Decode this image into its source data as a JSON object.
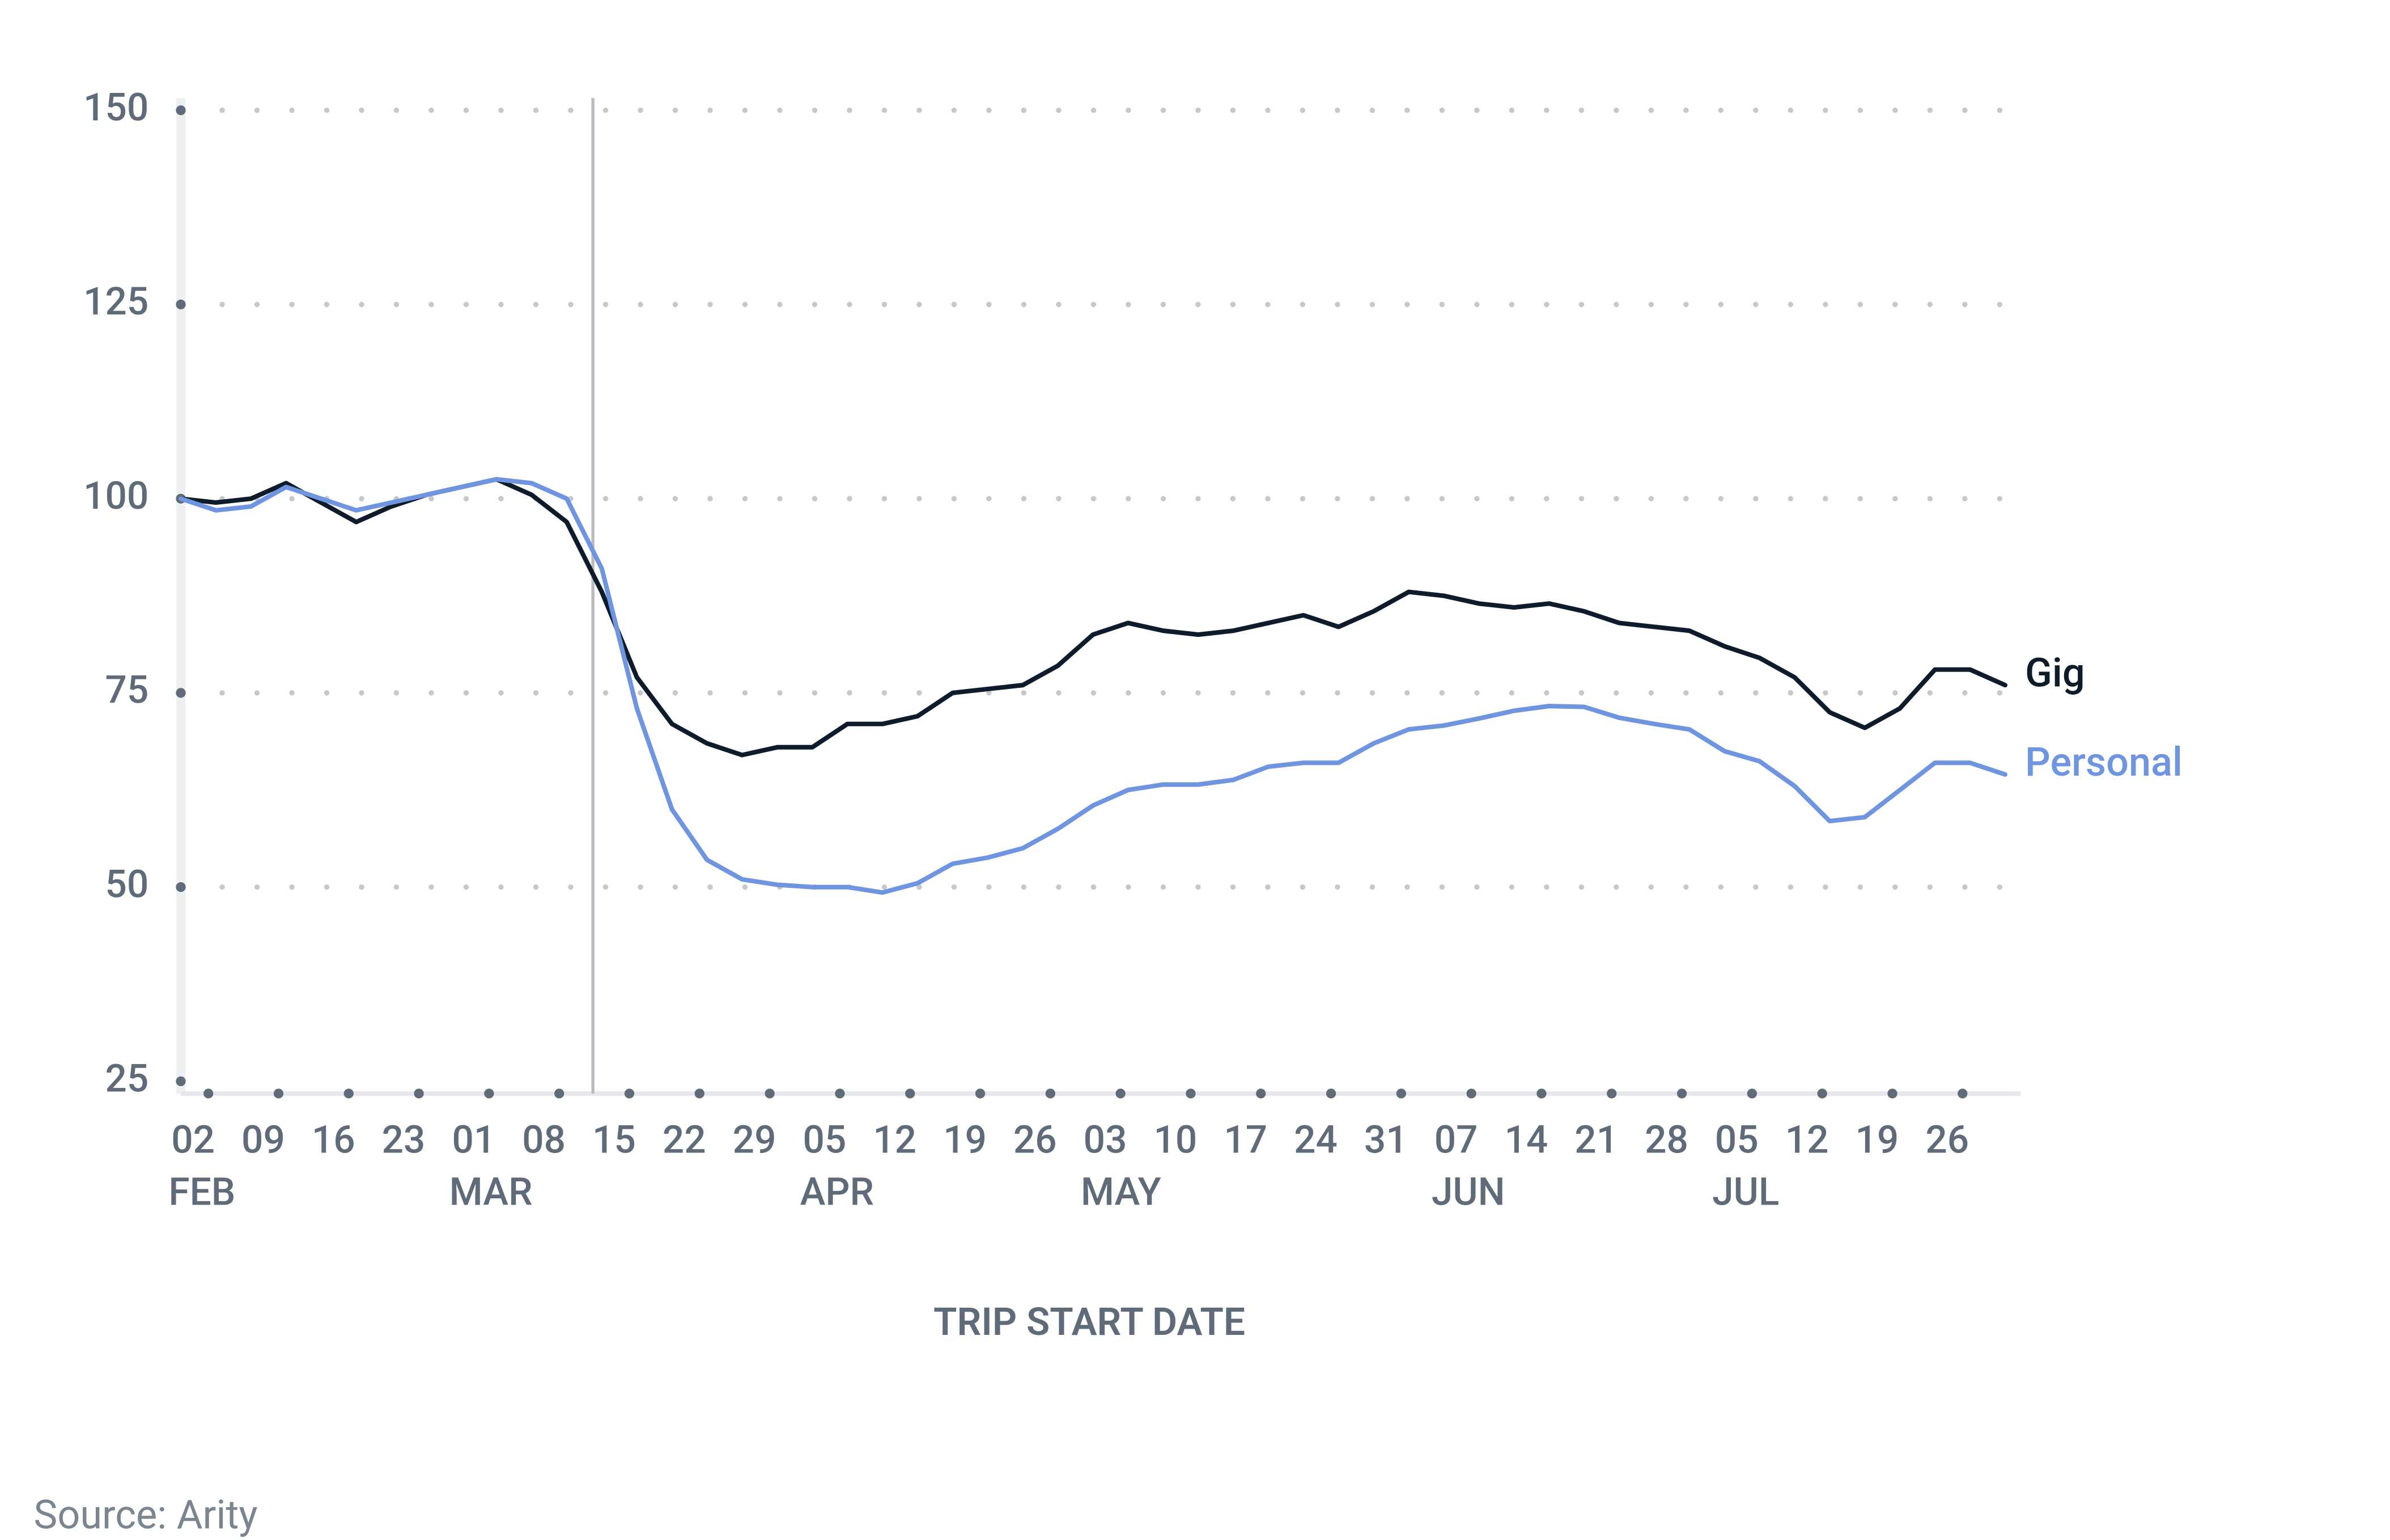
{
  "chart_data": {
    "type": "line",
    "xlabel": "TRIP START DATE",
    "source": "Source: Arity",
    "categories": [
      "02",
      null,
      "09",
      null,
      "16",
      null,
      "23",
      null,
      "01",
      null,
      "08",
      null,
      "15",
      null,
      "22",
      null,
      "29",
      null,
      "05",
      null,
      "12",
      null,
      "19",
      null,
      "26",
      null,
      "03",
      null,
      "10",
      null,
      "17",
      null,
      "24",
      null,
      "31",
      null,
      "07",
      null,
      "14",
      null,
      "21",
      null,
      "28",
      null,
      "05",
      null,
      "12",
      null,
      "19",
      null,
      "26",
      null,
      null
    ],
    "months": [
      "FEB",
      null,
      null,
      null,
      null,
      null,
      null,
      null,
      "MAR",
      null,
      null,
      null,
      null,
      null,
      null,
      null,
      null,
      null,
      "APR",
      null,
      null,
      null,
      null,
      null,
      null,
      null,
      "MAY",
      null,
      null,
      null,
      null,
      null,
      null,
      null,
      null,
      null,
      "JUN",
      null,
      null,
      null,
      null,
      null,
      null,
      null,
      "JUL",
      null,
      null,
      null,
      null,
      null,
      null,
      null,
      null
    ],
    "series": [
      {
        "name": "Gig",
        "color": "#0d1b2a",
        "values": [
          100,
          99.5,
          100,
          102,
          99.5,
          97,
          99,
          100.5,
          101.5,
          102.5,
          100.5,
          97,
          88,
          77,
          71,
          68.5,
          67,
          68,
          68,
          71,
          71,
          72,
          75,
          75.5,
          76,
          78.5,
          82.5,
          84,
          83,
          82.5,
          83,
          84,
          85,
          83.5,
          85.5,
          88,
          87.5,
          86.5,
          86,
          86.5,
          85.5,
          84,
          83.5,
          83,
          81,
          79.5,
          77,
          72.5,
          70.5,
          73,
          78,
          78,
          76
        ]
      },
      {
        "name": "Personal",
        "color": "#6f94e0",
        "values": [
          100,
          98.5,
          99,
          101.5,
          100,
          98.5,
          99.5,
          100.5,
          101.5,
          102.5,
          102,
          100,
          91,
          73,
          60,
          53.5,
          51,
          50.3,
          50,
          50,
          49.3,
          50.5,
          53,
          53.8,
          55,
          57.5,
          60.5,
          62.5,
          63.2,
          63.2,
          63.8,
          65.5,
          66,
          66,
          68.5,
          70.3,
          70.8,
          71.7,
          72.7,
          73.3,
          73.2,
          71.8,
          71,
          70.3,
          67.5,
          66.2,
          63,
          58.5,
          59,
          62.5,
          66,
          66,
          64.5
        ]
      }
    ],
    "ylim": [
      25,
      150
    ],
    "yticks": [
      25,
      50,
      75,
      100,
      125,
      150
    ],
    "grid": true
  }
}
